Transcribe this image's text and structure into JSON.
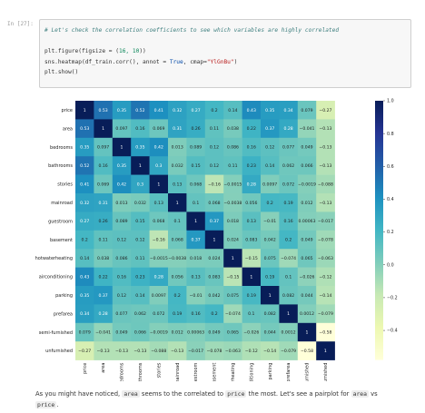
{
  "cell": {
    "prompt": "In [27]:",
    "code": {
      "comment": "# Let's check the correlation coefficients to see which variables are highly correlated",
      "line1_fn": "plt.figure(figsize = (",
      "line1_nums": "16, 10",
      "line1_end": "))",
      "line2_fn": "sns.heatmap(df_train.corr(), annot = ",
      "line2_true": "True",
      "line2_mid": ", cmap=",
      "line2_cmap": "\"YlGnBu\"",
      "line2_end": ")",
      "line3": "plt.show()"
    }
  },
  "chart_data": {
    "type": "heatmap",
    "colormap": "YlGnBu",
    "vmin": -0.58,
    "vmax": 1.0,
    "labels": [
      "price",
      "area",
      "bedrooms",
      "bathrooms",
      "stories",
      "mainroad",
      "guestroom",
      "basement",
      "hotwaterheating",
      "airconditioning",
      "parking",
      "prefarea",
      "semi-furnished",
      "unfurnished"
    ],
    "colorbar_ticks": [
      "1.0",
      "0.8",
      "0.6",
      "0.4",
      "0.2",
      "0.0",
      "−0.2",
      "−0.4"
    ],
    "matrix": [
      [
        1,
        0.53,
        0.35,
        0.52,
        0.41,
        0.32,
        0.27,
        0.2,
        0.14,
        0.43,
        0.35,
        0.34,
        0.079,
        -0.27
      ],
      [
        0.53,
        1,
        0.097,
        0.16,
        0.069,
        0.31,
        0.26,
        0.11,
        0.038,
        0.22,
        0.37,
        0.28,
        -0.041,
        -0.13
      ],
      [
        0.35,
        0.097,
        1,
        0.35,
        0.42,
        0.013,
        0.089,
        0.12,
        0.086,
        0.16,
        0.12,
        0.077,
        0.049,
        -0.13
      ],
      [
        0.52,
        0.16,
        0.35,
        1,
        0.3,
        0.032,
        0.15,
        0.12,
        0.11,
        0.23,
        0.14,
        0.062,
        0.066,
        -0.13
      ],
      [
        0.41,
        0.069,
        0.42,
        0.3,
        1,
        0.13,
        0.068,
        -0.16,
        -0.0015,
        0.28,
        0.0097,
        0.072,
        -0.0019,
        -0.088
      ],
      [
        0.32,
        0.31,
        0.013,
        0.032,
        0.13,
        1,
        0.1,
        0.068,
        -0.0038,
        0.056,
        0.2,
        0.19,
        0.012,
        -0.13
      ],
      [
        0.27,
        0.26,
        0.089,
        0.15,
        0.068,
        0.1,
        1,
        0.37,
        0.018,
        0.13,
        -0.01,
        0.16,
        0.00063,
        -0.017
      ],
      [
        0.2,
        0.11,
        0.12,
        0.12,
        -0.16,
        0.068,
        0.37,
        1,
        0.024,
        0.083,
        0.042,
        0.2,
        0.049,
        -0.078
      ],
      [
        0.14,
        0.038,
        0.086,
        0.11,
        -0.0015,
        -0.0038,
        0.018,
        0.024,
        1,
        -0.15,
        0.075,
        -0.074,
        0.065,
        -0.063
      ],
      [
        0.43,
        0.22,
        0.16,
        0.23,
        0.28,
        0.056,
        0.13,
        0.083,
        -0.15,
        1,
        0.19,
        0.1,
        -0.026,
        -0.12
      ],
      [
        0.35,
        0.37,
        0.12,
        0.14,
        0.0097,
        0.2,
        -0.01,
        0.042,
        0.075,
        0.19,
        1,
        0.082,
        0.044,
        -0.14
      ],
      [
        0.34,
        0.28,
        0.077,
        0.062,
        0.072,
        0.19,
        0.16,
        0.2,
        -0.074,
        0.1,
        0.082,
        1,
        0.0012,
        -0.079
      ],
      [
        0.079,
        -0.041,
        0.049,
        0.066,
        -0.0019,
        0.012,
        0.00063,
        0.049,
        0.065,
        -0.026,
        0.044,
        0.0012,
        1,
        -0.58
      ],
      [
        -0.27,
        -0.13,
        -0.13,
        -0.13,
        -0.088,
        -0.13,
        -0.017,
        -0.078,
        -0.063,
        -0.12,
        -0.14,
        -0.079,
        -0.58,
        1
      ]
    ]
  },
  "markdown": {
    "t1": "As you might have noticed, ",
    "c1": "area",
    "t2": " seems to the correlated to ",
    "c2": "price",
    "t3": " the most. Let's see a pairplot for ",
    "c3": "area",
    "t4": " vs",
    "c4": "price",
    "t5": "."
  },
  "colors": {
    "cell_bg": "#f7f7f7",
    "comment": "#408080",
    "string": "#ba2121",
    "keyword": "#0048a8"
  }
}
